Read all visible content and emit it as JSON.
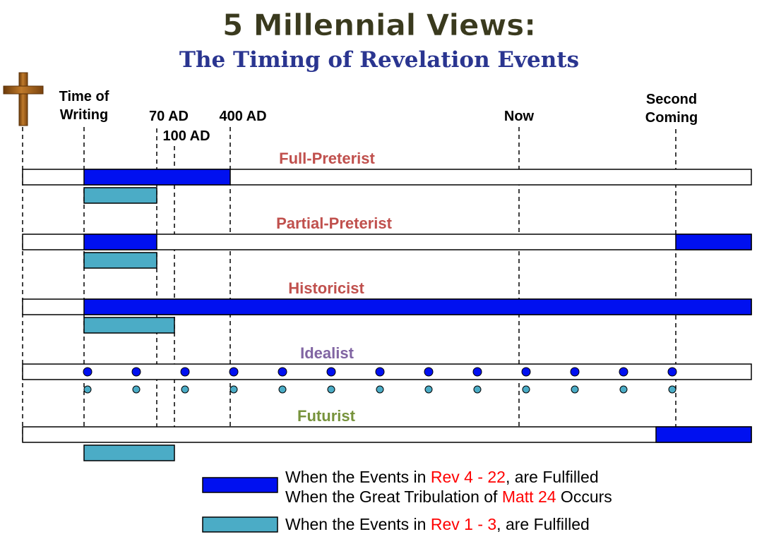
{
  "title": "5 Millennial Views:",
  "subtitle": "The Timing of Revelation Events",
  "colors": {
    "title": "#3a3a1e",
    "subtitle": "#2a3590",
    "rev4_22": "#0010f0",
    "rev1_3": "#4bacc6",
    "view_label": "#c0504d",
    "idealist_label": "#8064a2",
    "futurist_label": "#77933c",
    "reference_red": "#ff0000",
    "cross": "#9c5a14"
  },
  "icons": {
    "cross": "cross-icon"
  },
  "markers": [
    {
      "key": "time-of-writing",
      "lines": [
        "Time of",
        "Writing"
      ]
    },
    {
      "key": "70ad",
      "lines": [
        "70 AD"
      ]
    },
    {
      "key": "100ad",
      "lines": [
        "100 AD"
      ]
    },
    {
      "key": "400ad",
      "lines": [
        "400 AD"
      ]
    },
    {
      "key": "now",
      "lines": [
        "Now"
      ]
    },
    {
      "key": "second-coming",
      "lines": [
        "Second",
        "Coming"
      ]
    }
  ],
  "views": [
    {
      "key": "full-preterist",
      "label": "Full-Preterist",
      "color": "#c0504d",
      "rev4_22": [
        [
          "time-of-writing",
          "400ad"
        ]
      ],
      "rev1_3": [
        [
          "time-of-writing",
          "70ad"
        ]
      ]
    },
    {
      "key": "partial-preterist",
      "label": "Partial-Preterist",
      "color": "#c0504d",
      "rev4_22": [
        [
          "time-of-writing",
          "70ad"
        ],
        [
          "second-coming",
          "end"
        ]
      ],
      "rev1_3": [
        [
          "time-of-writing",
          "70ad"
        ]
      ]
    },
    {
      "key": "historicist",
      "label": "Historicist",
      "color": "#c0504d",
      "rev4_22": [
        [
          "time-of-writing",
          "end"
        ]
      ],
      "rev1_3": [
        [
          "time-of-writing",
          "100ad"
        ]
      ]
    },
    {
      "key": "idealist",
      "label": "Idealist",
      "color": "#8064a2",
      "rev4_22": [],
      "rev1_3": [],
      "recurring": true
    },
    {
      "key": "futurist",
      "label": "Futurist",
      "color": "#77933c",
      "rev4_22": [
        [
          "before-second-coming",
          "end"
        ]
      ],
      "rev1_3": [
        [
          "time-of-writing",
          "100ad"
        ]
      ]
    }
  ],
  "legend": [
    {
      "key": "rev4_22",
      "color": "#0010f0",
      "lines": [
        [
          {
            "t": "When the Events in "
          },
          {
            "t": "Rev 4 - 22",
            "red": true
          },
          {
            "t": ", are Fulfilled"
          }
        ],
        [
          {
            "t": "When the Great Tribulation of "
          },
          {
            "t": "Matt 24",
            "red": true
          },
          {
            "t": " Occurs"
          }
        ]
      ]
    },
    {
      "key": "rev1_3",
      "color": "#4bacc6",
      "lines": [
        [
          {
            "t": "When the Events in "
          },
          {
            "t": "Rev 1 - 3",
            "red": true
          },
          {
            "t": ", are Fulfilled"
          }
        ]
      ]
    }
  ]
}
